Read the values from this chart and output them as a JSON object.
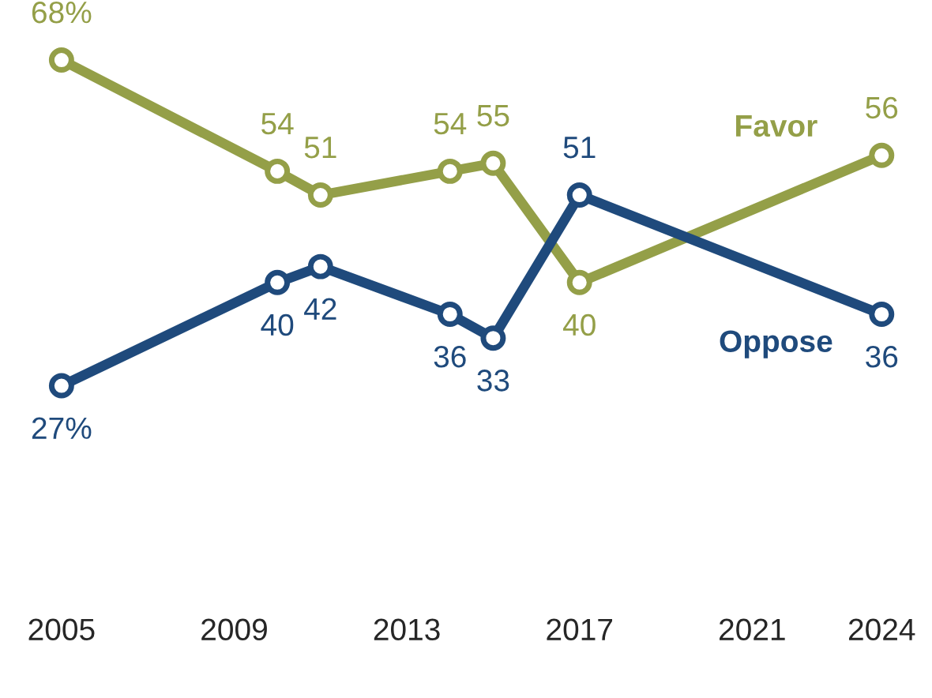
{
  "chart_data": {
    "type": "line",
    "x": [
      2005,
      2010,
      2011,
      2014,
      2015,
      2017,
      2024
    ],
    "series": [
      {
        "name": "Favor",
        "color": "#949f48",
        "values": [
          68,
          54,
          51,
          54,
          55,
          40,
          56
        ],
        "value_labels": [
          "68%",
          "54",
          "51",
          "54",
          "55",
          "40",
          "56"
        ]
      },
      {
        "name": "Oppose",
        "color": "#1f4a7c",
        "values": [
          27,
          40,
          42,
          36,
          33,
          51,
          36
        ],
        "value_labels": [
          "27%",
          "40",
          "42",
          "36",
          "33",
          "51",
          "36"
        ]
      }
    ],
    "xlim": [
      2005,
      2024
    ],
    "xticks": [
      2005,
      2009,
      2013,
      2017,
      2021,
      2024
    ],
    "marker": "circle",
    "line_style": "solid",
    "grid": false,
    "legend": false
  }
}
